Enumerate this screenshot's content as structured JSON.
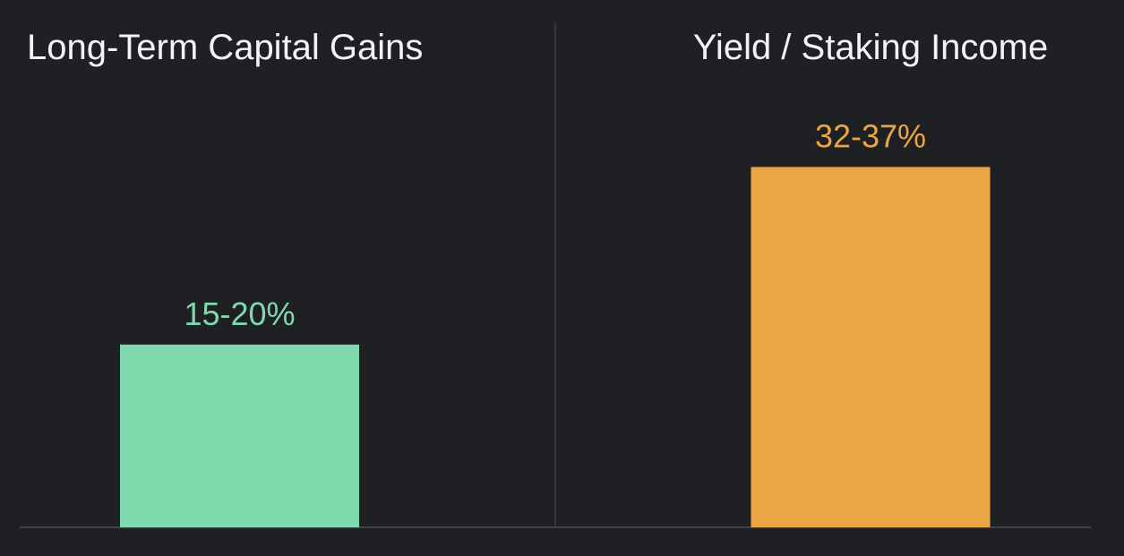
{
  "chart_data": {
    "type": "bar",
    "categories": [
      "Long-Term Capital Gains",
      "Yield / Staking Income"
    ],
    "values": [
      17.5,
      34.5
    ],
    "ranges": [
      [
        15,
        20
      ],
      [
        32,
        37
      ]
    ],
    "value_labels": [
      "15-20%",
      "32-37%"
    ],
    "colors": [
      "#7fd9ad",
      "#eba544"
    ],
    "title": "",
    "xlabel": "",
    "ylabel": "",
    "ylim": [
      0,
      42
    ],
    "grid": false,
    "legend": "none"
  },
  "theme": {
    "background": "#1e2024",
    "divider": "#3a3d42",
    "baseline": "#4a4d52",
    "title_color": "#f2f3f5"
  }
}
